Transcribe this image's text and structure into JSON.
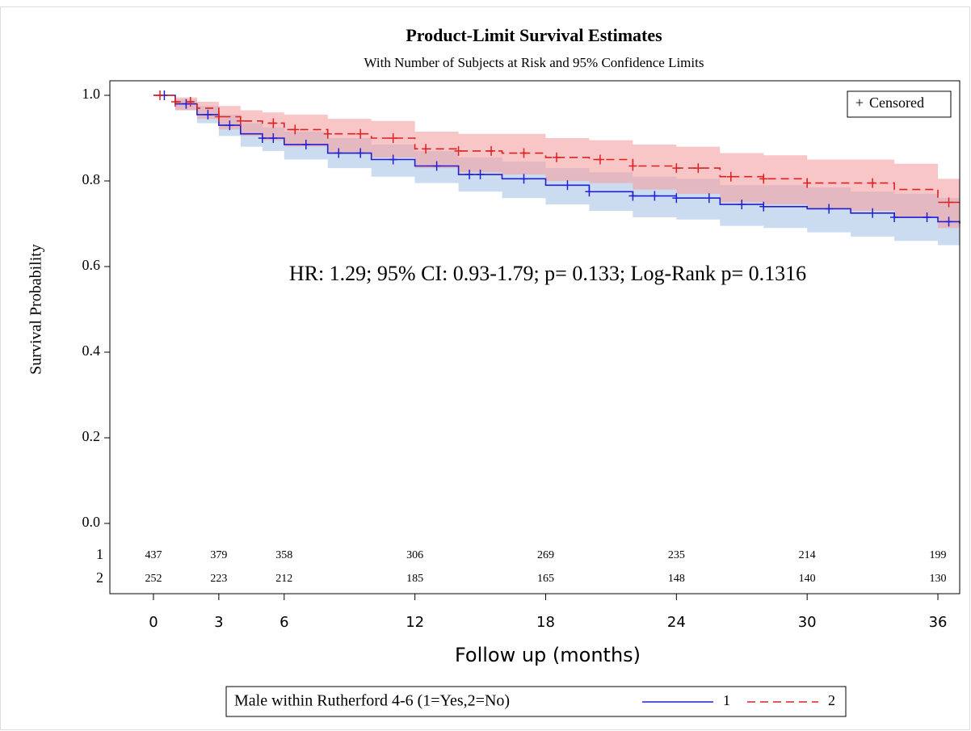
{
  "chart_data": {
    "type": "km",
    "title": "Product-Limit Survival Estimates",
    "subtitle": "With Number of Subjects at Risk and 95% Confidence Limits",
    "annotation": "HR: 1.29; 95% CI: 0.93-1.79; p= 0.133; Log-Rank p= 0.1316",
    "y_label": "Survival Probability",
    "x_label": "Follow up (months)",
    "censored_label": "Censored",
    "legend_title": "Male within Rutherford 4-6 (1=Yes,2=No)",
    "xlim": [
      -2,
      37
    ],
    "ylim": [
      0,
      1
    ],
    "xticks": [
      0,
      3,
      6,
      12,
      18,
      24,
      30,
      36
    ],
    "yticks": [
      {
        "value": 0,
        "label": "0.0"
      },
      0.2,
      0.4,
      0.6,
      0.8,
      {
        "value": 1,
        "label": "1.0"
      }
    ],
    "series": [
      {
        "name": "1",
        "color": "#2020d0",
        "band_color": "#a9c3e6",
        "dashed": false,
        "x": [
          0,
          1,
          2,
          3,
          4,
          5,
          6,
          8,
          10,
          12,
          14,
          16,
          18,
          20,
          22,
          24,
          26,
          28,
          30,
          32,
          34,
          36,
          37
        ],
        "values": [
          1.0,
          0.98,
          0.955,
          0.93,
          0.91,
          0.9,
          0.885,
          0.865,
          0.85,
          0.835,
          0.815,
          0.805,
          0.79,
          0.775,
          0.765,
          0.76,
          0.745,
          0.74,
          0.735,
          0.725,
          0.715,
          0.705,
          0.7
        ],
        "lower": [
          1.0,
          0.965,
          0.935,
          0.905,
          0.88,
          0.87,
          0.85,
          0.83,
          0.81,
          0.795,
          0.775,
          0.76,
          0.745,
          0.73,
          0.715,
          0.71,
          0.695,
          0.69,
          0.68,
          0.67,
          0.66,
          0.65,
          0.648
        ],
        "upper": [
          1.0,
          0.99,
          0.975,
          0.955,
          0.935,
          0.925,
          0.915,
          0.9,
          0.885,
          0.87,
          0.855,
          0.845,
          0.83,
          0.82,
          0.81,
          0.805,
          0.79,
          0.79,
          0.785,
          0.775,
          0.77,
          0.76,
          0.755
        ],
        "censored_x": [
          0.5,
          1.5,
          2.5,
          3.5,
          5,
          5.5,
          7,
          8.5,
          9.5,
          11,
          13,
          14.5,
          15,
          17,
          19,
          20,
          22,
          23,
          24,
          25.5,
          27,
          28,
          31,
          33,
          34,
          35.5,
          36.5
        ]
      },
      {
        "name": "2",
        "color": "#e02020",
        "band_color": "#f4a0a0",
        "dashed": true,
        "x": [
          0,
          1,
          2,
          3,
          4,
          5,
          6,
          8,
          10,
          12,
          14,
          16,
          18,
          20,
          22,
          24,
          26,
          28,
          30,
          32,
          34,
          36,
          37
        ],
        "values": [
          1.0,
          0.985,
          0.97,
          0.95,
          0.94,
          0.935,
          0.92,
          0.91,
          0.9,
          0.875,
          0.87,
          0.865,
          0.855,
          0.85,
          0.835,
          0.83,
          0.81,
          0.805,
          0.795,
          0.795,
          0.78,
          0.75,
          0.75
        ],
        "lower": [
          1.0,
          0.965,
          0.945,
          0.92,
          0.905,
          0.895,
          0.88,
          0.865,
          0.855,
          0.83,
          0.82,
          0.815,
          0.8,
          0.795,
          0.78,
          0.77,
          0.75,
          0.745,
          0.735,
          0.73,
          0.715,
          0.69,
          0.69
        ],
        "upper": [
          1.0,
          0.995,
          0.985,
          0.975,
          0.965,
          0.96,
          0.955,
          0.945,
          0.94,
          0.915,
          0.91,
          0.91,
          0.9,
          0.895,
          0.885,
          0.88,
          0.865,
          0.86,
          0.85,
          0.85,
          0.84,
          0.805,
          0.8
        ],
        "censored_x": [
          0.3,
          1,
          1.7,
          3,
          4,
          5.5,
          6.5,
          8,
          9.5,
          11,
          12.5,
          14,
          15.5,
          17,
          18.5,
          20.5,
          22,
          24,
          25,
          26.5,
          28,
          30,
          33,
          36.5
        ]
      }
    ],
    "at_risk": {
      "times": [
        0,
        3,
        6,
        12,
        18,
        24,
        30,
        36
      ],
      "rows": [
        {
          "label": "1",
          "values": [
            437,
            379,
            358,
            306,
            269,
            235,
            214,
            199
          ]
        },
        {
          "label": "2",
          "values": [
            252,
            223,
            212,
            185,
            165,
            148,
            140,
            130
          ]
        }
      ]
    }
  }
}
